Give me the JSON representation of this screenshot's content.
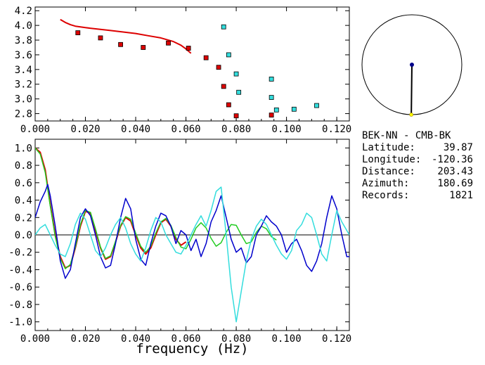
{
  "colors": {
    "red": "#dd0000",
    "blue": "#0000cc",
    "cyan": "#33dddd",
    "green": "#22cc22",
    "axis": "#000000",
    "yellow": "#ffff00",
    "navy": "#00008b"
  },
  "chart_data": [
    {
      "type": "scatter",
      "panel": "top",
      "xlim": [
        0.0,
        0.125
      ],
      "ylim": [
        2.7,
        4.25
      ],
      "x_ticks": [
        "0.000",
        "0.020",
        "0.040",
        "0.060",
        "0.080",
        "0.100",
        "0.120"
      ],
      "y_ticks": [
        "2.8",
        "3.0",
        "3.2",
        "3.4",
        "3.6",
        "3.8",
        "4.0",
        "4.2"
      ],
      "series": [
        {
          "color": "red",
          "kind": "curve",
          "x": [
            0.01,
            0.012,
            0.014,
            0.016,
            0.018,
            0.02,
            0.025,
            0.03,
            0.035,
            0.04,
            0.045,
            0.05,
            0.055,
            0.058,
            0.06,
            0.062
          ],
          "y": [
            4.08,
            4.04,
            4.01,
            3.99,
            3.98,
            3.97,
            3.95,
            3.93,
            3.91,
            3.89,
            3.86,
            3.83,
            3.78,
            3.73,
            3.68,
            3.62
          ]
        },
        {
          "color": "red",
          "kind": "points",
          "x": [
            0.017,
            0.026,
            0.034,
            0.043,
            0.053,
            0.061,
            0.068,
            0.073,
            0.075,
            0.077,
            0.08,
            0.094
          ],
          "y": [
            3.9,
            3.83,
            3.74,
            3.7,
            3.76,
            3.69,
            3.56,
            3.43,
            3.17,
            2.92,
            2.77,
            2.78
          ]
        },
        {
          "color": "cyan",
          "kind": "points",
          "x": [
            0.075,
            0.077,
            0.08,
            0.081,
            0.094,
            0.094,
            0.096,
            0.103,
            0.112
          ],
          "y": [
            3.98,
            3.6,
            3.34,
            3.09,
            3.27,
            3.02,
            2.85,
            2.86,
            2.91
          ]
        }
      ]
    },
    {
      "type": "line",
      "panel": "bottom",
      "xlabel": "frequency (Hz)",
      "xlim": [
        0.0,
        0.125
      ],
      "ylim": [
        -1.1,
        1.1
      ],
      "x_ticks": [
        "0.000",
        "0.020",
        "0.040",
        "0.060",
        "0.080",
        "0.100",
        "0.120"
      ],
      "y_ticks": [
        "1.0",
        "0.8",
        "0.6",
        "0.4",
        "0.2",
        "0.0",
        "-0.2",
        "-0.4",
        "-0.6",
        "-0.8",
        "-1.0"
      ],
      "series": [
        {
          "color": "red",
          "x": [
            0.0,
            0.002,
            0.004,
            0.006,
            0.008,
            0.01,
            0.012,
            0.014,
            0.016,
            0.018,
            0.02,
            0.022,
            0.024,
            0.026,
            0.028,
            0.03,
            0.032,
            0.034,
            0.036,
            0.038,
            0.04,
            0.042,
            0.044,
            0.046,
            0.048,
            0.05,
            0.052,
            0.054,
            0.056,
            0.058,
            0.06
          ],
          "y": [
            1.0,
            0.95,
            0.75,
            0.35,
            0.0,
            -0.25,
            -0.38,
            -0.35,
            -0.15,
            0.1,
            0.27,
            0.25,
            0.05,
            -0.15,
            -0.28,
            -0.25,
            -0.08,
            0.1,
            0.2,
            0.16,
            0.0,
            -0.15,
            -0.22,
            -0.15,
            0.0,
            0.14,
            0.18,
            0.1,
            -0.05,
            -0.12,
            -0.08
          ]
        },
        {
          "color": "green",
          "x": [
            0.0,
            0.002,
            0.004,
            0.006,
            0.008,
            0.01,
            0.012,
            0.014,
            0.016,
            0.018,
            0.02,
            0.022,
            0.024,
            0.026,
            0.028,
            0.03,
            0.032,
            0.034,
            0.036,
            0.038,
            0.04,
            0.042,
            0.044,
            0.046,
            0.048,
            0.05,
            0.052,
            0.054,
            0.056,
            0.058,
            0.06,
            0.062,
            0.064,
            0.066,
            0.068,
            0.07,
            0.072,
            0.074,
            0.076,
            0.078,
            0.08,
            0.082,
            0.084,
            0.086,
            0.088,
            0.09,
            0.092,
            0.094,
            0.096
          ],
          "y": [
            1.0,
            0.93,
            0.72,
            0.33,
            -0.02,
            -0.27,
            -0.39,
            -0.34,
            -0.14,
            0.12,
            0.28,
            0.26,
            0.07,
            -0.14,
            -0.27,
            -0.24,
            -0.07,
            0.11,
            0.21,
            0.18,
            0.02,
            -0.13,
            -0.2,
            -0.13,
            0.02,
            0.15,
            0.19,
            0.11,
            -0.03,
            -0.14,
            -0.16,
            -0.05,
            0.08,
            0.14,
            0.08,
            -0.04,
            -0.13,
            -0.09,
            0.03,
            0.12,
            0.11,
            0.0,
            -0.1,
            -0.08,
            0.03,
            0.1,
            0.07,
            -0.02,
            -0.06
          ]
        },
        {
          "color": "blue",
          "x": [
            0.0,
            0.002,
            0.004,
            0.005,
            0.006,
            0.008,
            0.01,
            0.012,
            0.014,
            0.016,
            0.018,
            0.02,
            0.022,
            0.024,
            0.026,
            0.028,
            0.03,
            0.032,
            0.034,
            0.036,
            0.038,
            0.04,
            0.042,
            0.044,
            0.046,
            0.048,
            0.05,
            0.052,
            0.054,
            0.056,
            0.058,
            0.06,
            0.062,
            0.064,
            0.066,
            0.068,
            0.07,
            0.072,
            0.074,
            0.076,
            0.078,
            0.08,
            0.082,
            0.084,
            0.086,
            0.088,
            0.09,
            0.092,
            0.094,
            0.096,
            0.098,
            0.1,
            0.102,
            0.104,
            0.106,
            0.108,
            0.11,
            0.112,
            0.114,
            0.116,
            0.118,
            0.12,
            0.122,
            0.124,
            0.125
          ],
          "y": [
            0.2,
            0.38,
            0.5,
            0.58,
            0.45,
            0.1,
            -0.3,
            -0.5,
            -0.4,
            -0.1,
            0.2,
            0.3,
            0.22,
            0.0,
            -0.25,
            -0.38,
            -0.35,
            -0.1,
            0.2,
            0.42,
            0.3,
            -0.05,
            -0.28,
            -0.35,
            -0.1,
            0.1,
            0.25,
            0.22,
            0.1,
            -0.1,
            0.05,
            0.0,
            -0.18,
            -0.05,
            -0.25,
            -0.1,
            0.15,
            0.28,
            0.45,
            0.2,
            -0.05,
            -0.2,
            -0.15,
            -0.32,
            -0.25,
            0.0,
            0.1,
            0.22,
            0.15,
            0.1,
            0.0,
            -0.2,
            -0.1,
            -0.05,
            -0.18,
            -0.35,
            -0.42,
            -0.3,
            -0.1,
            0.2,
            0.45,
            0.3,
            0.0,
            -0.25,
            -0.25
          ]
        },
        {
          "color": "cyan",
          "x": [
            0.0,
            0.002,
            0.004,
            0.006,
            0.008,
            0.01,
            0.012,
            0.014,
            0.016,
            0.018,
            0.02,
            0.022,
            0.024,
            0.026,
            0.028,
            0.03,
            0.032,
            0.034,
            0.036,
            0.038,
            0.04,
            0.042,
            0.044,
            0.046,
            0.048,
            0.05,
            0.052,
            0.054,
            0.056,
            0.058,
            0.06,
            0.062,
            0.064,
            0.066,
            0.068,
            0.07,
            0.072,
            0.074,
            0.076,
            0.078,
            0.08,
            0.082,
            0.084,
            0.086,
            0.088,
            0.09,
            0.092,
            0.094,
            0.096,
            0.098,
            0.1,
            0.102,
            0.104,
            0.106,
            0.108,
            0.11,
            0.112,
            0.114,
            0.116,
            0.118,
            0.12,
            0.122,
            0.124,
            0.125
          ],
          "y": [
            0.0,
            0.08,
            0.12,
            0.0,
            -0.12,
            -0.22,
            -0.25,
            -0.1,
            0.12,
            0.25,
            0.18,
            0.0,
            -0.18,
            -0.25,
            -0.15,
            0.0,
            0.12,
            0.2,
            0.08,
            -0.1,
            -0.22,
            -0.3,
            -0.15,
            0.05,
            0.2,
            0.15,
            0.0,
            -0.1,
            -0.2,
            -0.22,
            -0.12,
            0.0,
            0.12,
            0.22,
            0.1,
            0.28,
            0.5,
            0.55,
            0.0,
            -0.6,
            -1.0,
            -0.65,
            -0.3,
            -0.05,
            0.1,
            0.18,
            0.12,
            0.0,
            -0.12,
            -0.22,
            -0.28,
            -0.18,
            0.05,
            0.12,
            0.25,
            0.2,
            0.0,
            -0.22,
            -0.3,
            0.0,
            0.28,
            0.15,
            0.05,
            0.0
          ]
        }
      ]
    }
  ],
  "circle": {
    "azimuth_deg": 180.69,
    "marker_fraction": 0.95
  },
  "station": {
    "title": "BEK-NN - CMB-BK",
    "latitude_label": "Latitude:",
    "latitude": "39.87",
    "longitude_label": "Longitude:",
    "longitude": "-120.36",
    "distance_label": "Distance:",
    "distance": "203.43",
    "azimuth_label": "Azimuth:",
    "azimuth": "180.69",
    "records_label": "Records:",
    "records": "1821"
  }
}
